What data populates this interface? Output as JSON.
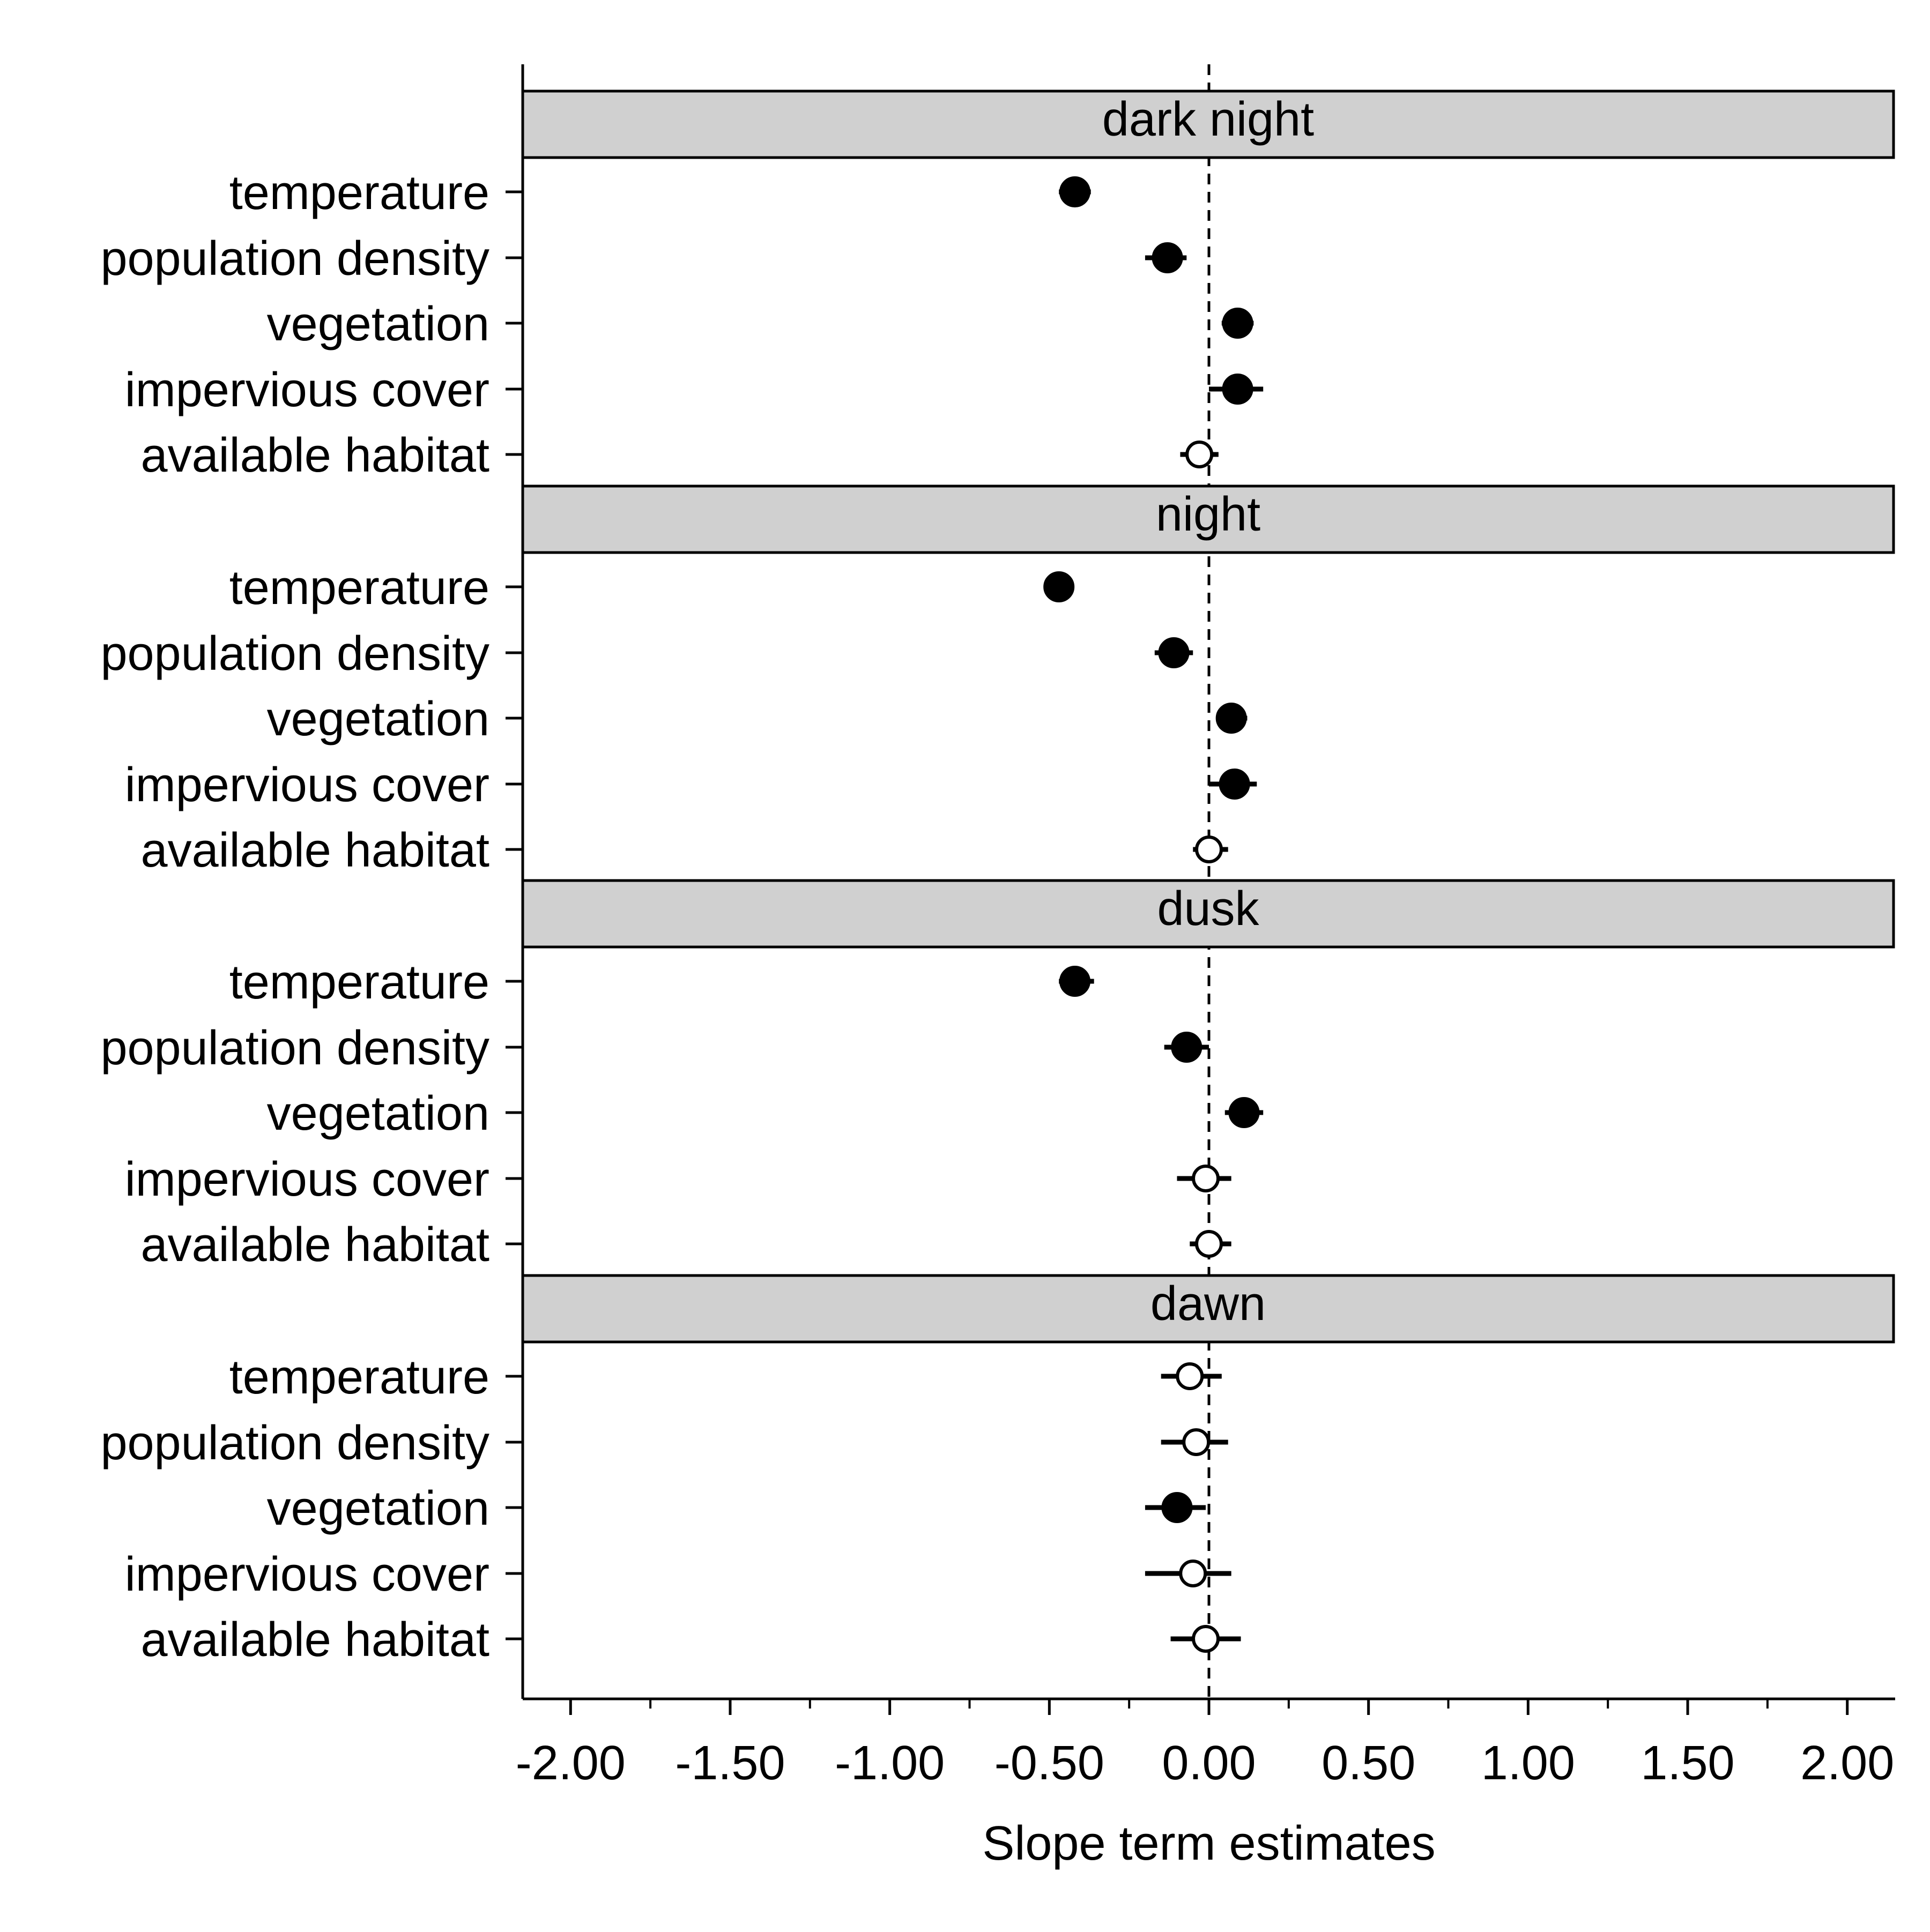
{
  "chart_data": {
    "type": "scatter",
    "subtype": "coefficient-plot with error bars, faceted by panel",
    "xlabel": "Slope term estimates",
    "xlim": [
      -2.15,
      2.15
    ],
    "x_ticks": [
      -2.0,
      -1.5,
      -1.0,
      -0.5,
      0.0,
      0.5,
      1.0,
      1.5,
      2.0
    ],
    "x_tick_labels": [
      "-2.00",
      "-1.50",
      "-1.00",
      "-0.50",
      "0.00",
      "0.50",
      "1.00",
      "1.50",
      "2.00"
    ],
    "minor_ticks": [
      -1.75,
      -1.25,
      -0.75,
      -0.25,
      0.25,
      0.75,
      1.25,
      1.75
    ],
    "reference_line": {
      "x": 0,
      "style": "dashed"
    },
    "grid": false,
    "legend": "none",
    "marker_encoding": {
      "filled": "#000000",
      "open": "#ffffff"
    },
    "categories": [
      "temperature",
      "population density",
      "vegetation",
      "impervious cover",
      "available habitat"
    ],
    "panels": [
      {
        "name": "dark night",
        "estimates": [
          -0.42,
          -0.13,
          0.09,
          0.09,
          -0.03
        ],
        "lower": [
          -0.47,
          -0.2,
          0.04,
          0.0,
          -0.09
        ],
        "upper": [
          -0.37,
          -0.07,
          0.14,
          0.17,
          0.03
        ],
        "filled": [
          true,
          true,
          true,
          true,
          false
        ]
      },
      {
        "name": "night",
        "estimates": [
          -0.47,
          -0.11,
          0.07,
          0.08,
          0.0
        ],
        "lower": [
          -0.51,
          -0.17,
          0.03,
          0.0,
          -0.05
        ],
        "upper": [
          -0.43,
          -0.05,
          0.12,
          0.15,
          0.06
        ],
        "filled": [
          true,
          true,
          true,
          true,
          false
        ]
      },
      {
        "name": "dusk",
        "estimates": [
          -0.42,
          -0.07,
          0.11,
          -0.01,
          0.0
        ],
        "lower": [
          -0.47,
          -0.14,
          0.05,
          -0.1,
          -0.06
        ],
        "upper": [
          -0.36,
          0.0,
          0.17,
          0.07,
          0.07
        ],
        "filled": [
          true,
          true,
          true,
          false,
          false
        ]
      },
      {
        "name": "dawn",
        "estimates": [
          -0.06,
          -0.04,
          -0.1,
          -0.05,
          -0.01
        ],
        "lower": [
          -0.15,
          -0.15,
          -0.2,
          -0.2,
          -0.12
        ],
        "upper": [
          0.04,
          0.06,
          -0.01,
          0.07,
          0.1
        ],
        "filled": [
          false,
          false,
          true,
          false,
          false
        ]
      }
    ]
  }
}
